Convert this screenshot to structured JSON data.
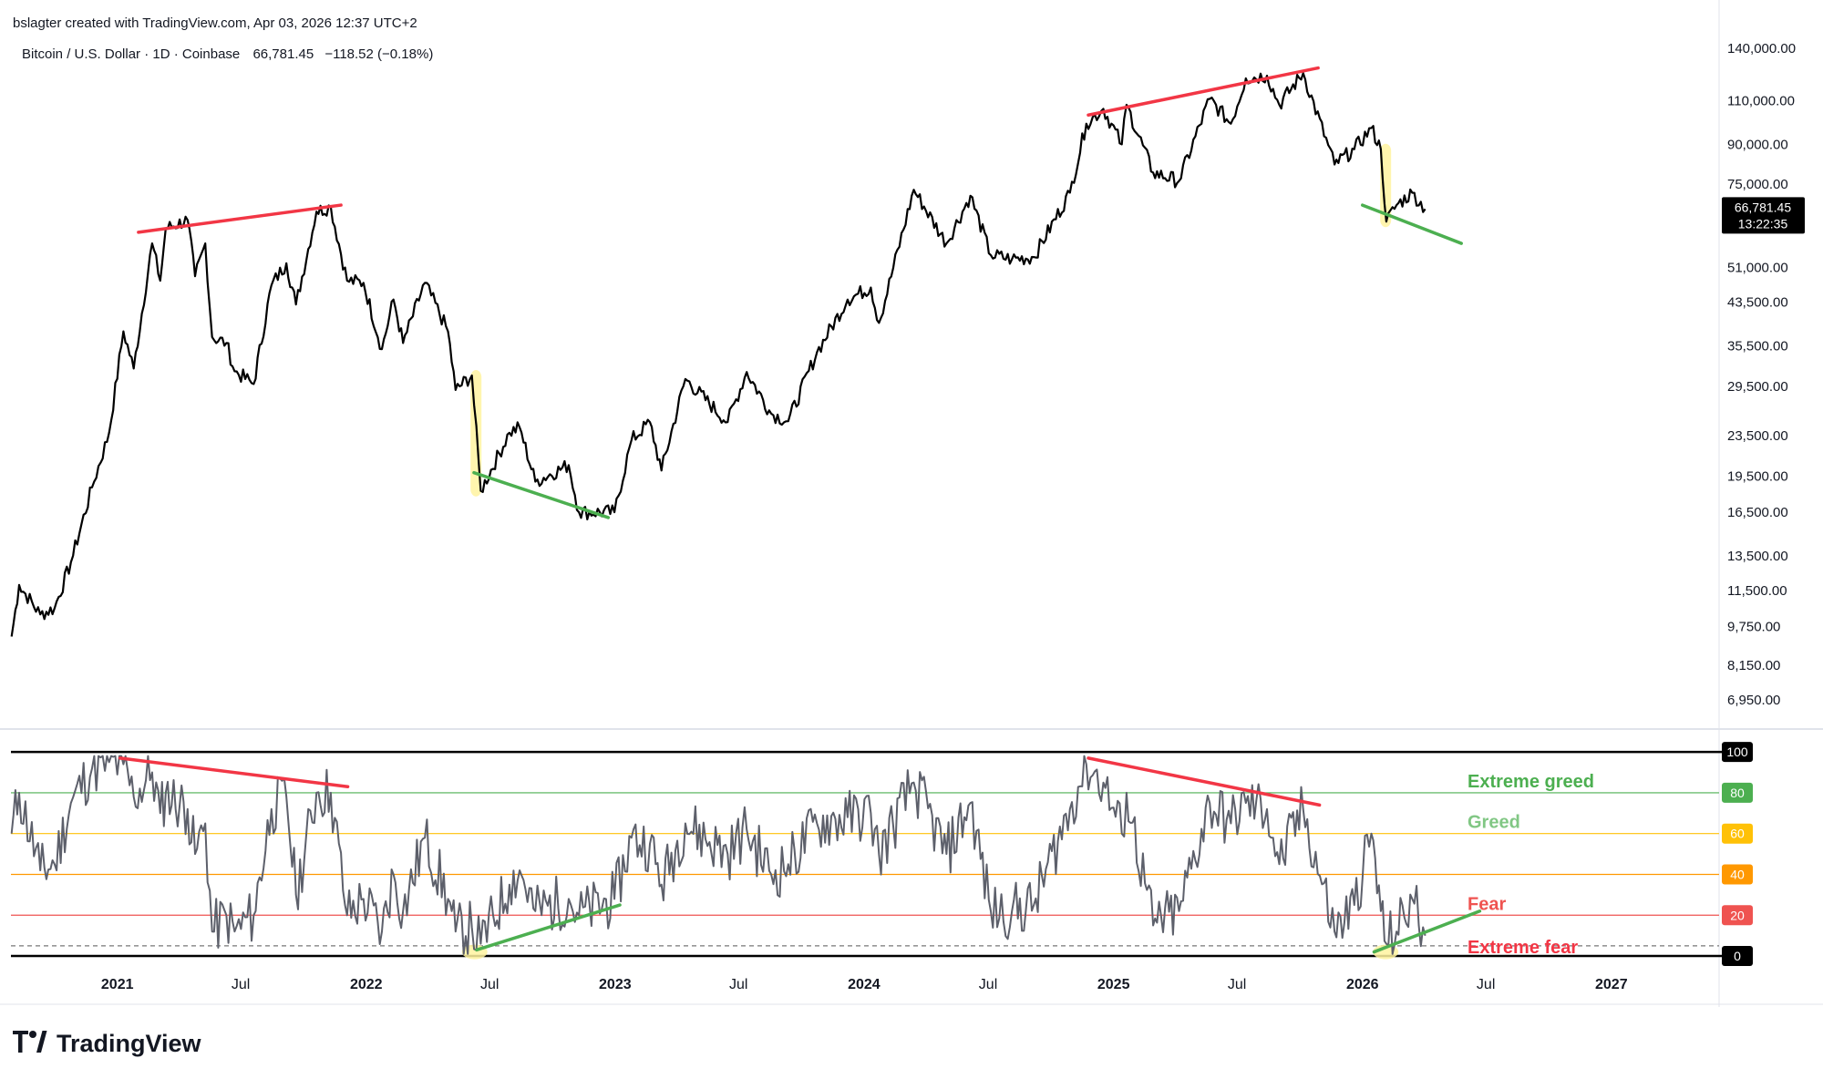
{
  "header": {
    "attribution": "bslagter created with TradingView.com, Apr 03, 2026 12:37 UTC+2",
    "symbol": "Bitcoin / U.S. Dollar · 1D · Coinbase",
    "last": "66,781.45",
    "change": "−118.52 (−0.18%)"
  },
  "price_badge": {
    "value": "66,781.45",
    "countdown": "13:22:35"
  },
  "logo": {
    "text": "TradingView"
  },
  "colors": {
    "price": "#000000",
    "indicator": "#5d606b",
    "trend_red": "#f23645",
    "trend_green": "#4caf50",
    "highlight": "#fff3a0",
    "extreme_greed": "#4caf50",
    "greed": "#81c784",
    "neutral": "#ffc107",
    "caution": "#ff9800",
    "fear": "#ef5350",
    "extreme_fear": "#f23645",
    "badge_dark": "#000000"
  },
  "chart_data": [
    {
      "type": "line",
      "title": "Bitcoin / U.S. Dollar · 1D · Coinbase",
      "scale": "log",
      "ylim": [
        6200,
        148000
      ],
      "y_ticks": [
        "140,000.00",
        "110,000.00",
        "90,000.00",
        "75,000.00",
        "51,000.00",
        "43,500.00",
        "35,500.00",
        "29,500.00",
        "23,500.00",
        "19,500.00",
        "16,500.00",
        "13,500.00",
        "11,500.00",
        "9,750.00",
        "8,150.00",
        "6,950.00"
      ],
      "y_tick_values": [
        140000,
        110000,
        90000,
        75000,
        51000,
        43500,
        35500,
        29500,
        23500,
        19500,
        16500,
        13500,
        11500,
        9750,
        8150,
        6950
      ],
      "x_ticks": [
        "2021",
        "Jul",
        "2022",
        "Jul",
        "2023",
        "Jul",
        "2024",
        "Jul",
        "2025",
        "Jul",
        "2026",
        "Jul",
        "2027"
      ],
      "x_tick_dates": [
        "2021-01-01",
        "2021-07-01",
        "2022-01-01",
        "2022-07-01",
        "2023-01-01",
        "2023-07-01",
        "2024-01-01",
        "2024-07-01",
        "2025-01-01",
        "2025-07-01",
        "2026-01-01",
        "2026-07-01",
        "2027-01-01"
      ],
      "xlim": [
        "2020-07-29",
        "2027-06-08"
      ],
      "series": [
        {
          "values": [
            [
              "2020-07-30",
              9300
            ],
            [
              "2020-08-10",
              11800
            ],
            [
              "2020-09-10",
              10300
            ],
            [
              "2020-10-01",
              10600
            ],
            [
              "2020-10-25",
              13100
            ],
            [
              "2020-11-25",
              18500
            ],
            [
              "2020-12-20",
              23800
            ],
            [
              "2021-01-10",
              38000
            ],
            [
              "2021-01-25",
              32000
            ],
            [
              "2021-02-21",
              57000
            ],
            [
              "2021-03-05",
              48000
            ],
            [
              "2021-03-13",
              61000
            ],
            [
              "2021-04-14",
              63500
            ],
            [
              "2021-04-25",
              49000
            ],
            [
              "2021-05-10",
              57000
            ],
            [
              "2021-05-20",
              37000
            ],
            [
              "2021-06-10",
              36000
            ],
            [
              "2021-06-22",
              31600
            ],
            [
              "2021-07-20",
              29800
            ],
            [
              "2021-08-15",
              47000
            ],
            [
              "2021-09-06",
              52000
            ],
            [
              "2021-09-20",
              43000
            ],
            [
              "2021-10-20",
              66000
            ],
            [
              "2021-11-10",
              67500
            ],
            [
              "2021-12-04",
              48000
            ],
            [
              "2021-12-28",
              47500
            ],
            [
              "2022-01-24",
              35000
            ],
            [
              "2022-02-10",
              44000
            ],
            [
              "2022-02-24",
              36000
            ],
            [
              "2022-03-28",
              47500
            ],
            [
              "2022-05-01",
              38000
            ],
            [
              "2022-05-12",
              29000
            ],
            [
              "2022-06-05",
              31000
            ],
            [
              "2022-06-18",
              18200
            ],
            [
              "2022-07-30",
              23800
            ],
            [
              "2022-08-14",
              24400
            ],
            [
              "2022-09-06",
              19000
            ],
            [
              "2022-10-25",
              20500
            ],
            [
              "2022-11-09",
              16500
            ],
            [
              "2022-12-31",
              16500
            ],
            [
              "2023-01-25",
              23000
            ],
            [
              "2023-02-21",
              25000
            ],
            [
              "2023-03-10",
              20000
            ],
            [
              "2023-04-14",
              30500
            ],
            [
              "2023-06-15",
              25000
            ],
            [
              "2023-07-13",
              31500
            ],
            [
              "2023-08-18",
              26000
            ],
            [
              "2023-09-12",
              25100
            ],
            [
              "2023-10-24",
              34500
            ],
            [
              "2023-12-08",
              44000
            ],
            [
              "2024-01-11",
              46500
            ],
            [
              "2024-01-23",
              39500
            ],
            [
              "2024-03-14",
              73000
            ],
            [
              "2024-05-01",
              57000
            ],
            [
              "2024-06-05",
              71000
            ],
            [
              "2024-07-05",
              54000
            ],
            [
              "2024-08-05",
              53000
            ],
            [
              "2024-09-06",
              53500
            ],
            [
              "2024-10-29",
              72000
            ],
            [
              "2024-11-22",
              99000
            ],
            [
              "2024-12-17",
              106000
            ],
            [
              "2025-01-13",
              90000
            ],
            [
              "2025-01-20",
              108000
            ],
            [
              "2025-02-28",
              79000
            ],
            [
              "2025-04-07",
              76000
            ],
            [
              "2025-05-22",
              111000
            ],
            [
              "2025-06-22",
              99000
            ],
            [
              "2025-07-14",
              122000
            ],
            [
              "2025-08-14",
              123500
            ],
            [
              "2025-09-01",
              108000
            ],
            [
              "2025-10-06",
              125000
            ],
            [
              "2025-11-21",
              82000
            ],
            [
              "2025-12-20",
              88000
            ],
            [
              "2026-01-14",
              97000
            ],
            [
              "2026-01-28",
              88000
            ],
            [
              "2026-02-05",
              63000
            ],
            [
              "2026-02-20",
              68000
            ],
            [
              "2026-03-15",
              72000
            ],
            [
              "2026-04-03",
              66781
            ]
          ]
        }
      ]
    },
    {
      "type": "line",
      "ylim": [
        -4,
        109
      ],
      "y_ticks": [
        "100",
        "80",
        "60",
        "40",
        "20",
        "0"
      ],
      "y_tick_values": [
        100,
        80,
        60,
        40,
        20,
        0
      ],
      "x_ticks": [
        "2021",
        "Jul",
        "2022",
        "Jul",
        "2023",
        "Jul",
        "2024",
        "Jul",
        "2025",
        "Jul",
        "2026",
        "Jul",
        "2027"
      ],
      "zones": [
        {
          "value": 80,
          "label": "Extreme greed",
          "color": "#4caf50"
        },
        {
          "value": 60,
          "label": "Greed",
          "color": "#ffc107",
          "text_color": "#81c784"
        },
        {
          "value": 40,
          "label": "",
          "color": "#ff9800"
        },
        {
          "value": 20,
          "label": "Fear",
          "color": "#ef5350"
        },
        {
          "value": 5,
          "label": "Extreme fear",
          "color": "#f23645",
          "dashed": true
        }
      ],
      "series": [
        {
          "values": [
            [
              "2020-07-30",
              60
            ],
            [
              "2020-08-10",
              80
            ],
            [
              "2020-09-10",
              42
            ],
            [
              "2020-10-01",
              45
            ],
            [
              "2020-10-25",
              75
            ],
            [
              "2020-11-25",
              92
            ],
            [
              "2020-12-20",
              95
            ],
            [
              "2021-01-10",
              94
            ],
            [
              "2021-01-25",
              78
            ],
            [
              "2021-02-21",
              90
            ],
            [
              "2021-03-05",
              70
            ],
            [
              "2021-03-13",
              80
            ],
            [
              "2021-04-14",
              72
            ],
            [
              "2021-04-25",
              50
            ],
            [
              "2021-05-10",
              65
            ],
            [
              "2021-05-20",
              12
            ],
            [
              "2021-06-10",
              20
            ],
            [
              "2021-06-22",
              12
            ],
            [
              "2021-07-20",
              20
            ],
            [
              "2021-08-15",
              72
            ],
            [
              "2021-09-06",
              78
            ],
            [
              "2021-09-20",
              30
            ],
            [
              "2021-10-20",
              80
            ],
            [
              "2021-11-10",
              80
            ],
            [
              "2021-12-04",
              20
            ],
            [
              "2021-12-28",
              28
            ],
            [
              "2022-01-24",
              12
            ],
            [
              "2022-02-10",
              40
            ],
            [
              "2022-02-24",
              22
            ],
            [
              "2022-03-28",
              58
            ],
            [
              "2022-05-01",
              28
            ],
            [
              "2022-05-12",
              12
            ],
            [
              "2022-06-05",
              14
            ],
            [
              "2022-06-18",
              6
            ],
            [
              "2022-07-30",
              35
            ],
            [
              "2022-08-14",
              42
            ],
            [
              "2022-09-06",
              22
            ],
            [
              "2022-10-25",
              28
            ],
            [
              "2022-11-09",
              20
            ],
            [
              "2022-12-31",
              28
            ],
            [
              "2023-01-25",
              58
            ],
            [
              "2023-02-21",
              55
            ],
            [
              "2023-03-10",
              35
            ],
            [
              "2023-04-14",
              65
            ],
            [
              "2023-06-15",
              50
            ],
            [
              "2023-07-13",
              62
            ],
            [
              "2023-08-18",
              40
            ],
            [
              "2023-09-12",
              45
            ],
            [
              "2023-10-24",
              65
            ],
            [
              "2023-12-08",
              68
            ],
            [
              "2024-01-11",
              70
            ],
            [
              "2024-01-23",
              50
            ],
            [
              "2024-03-14",
              85
            ],
            [
              "2024-05-01",
              50
            ],
            [
              "2024-06-05",
              75
            ],
            [
              "2024-07-05",
              22
            ],
            [
              "2024-08-05",
              22
            ],
            [
              "2024-09-06",
              25
            ],
            [
              "2024-10-29",
              72
            ],
            [
              "2024-11-22",
              94
            ],
            [
              "2024-12-17",
              85
            ],
            [
              "2025-01-13",
              60
            ],
            [
              "2025-01-20",
              80
            ],
            [
              "2025-02-28",
              15
            ],
            [
              "2025-04-07",
              22
            ],
            [
              "2025-05-22",
              75
            ],
            [
              "2025-06-22",
              65
            ],
            [
              "2025-07-14",
              75
            ],
            [
              "2025-08-14",
              72
            ],
            [
              "2025-09-01",
              45
            ],
            [
              "2025-10-06",
              72
            ],
            [
              "2025-11-21",
              12
            ],
            [
              "2025-12-20",
              25
            ],
            [
              "2026-01-14",
              60
            ],
            [
              "2026-01-28",
              22
            ],
            [
              "2026-02-05",
              6
            ],
            [
              "2026-02-20",
              12
            ],
            [
              "2026-03-15",
              28
            ],
            [
              "2026-04-03",
              10
            ]
          ]
        }
      ]
    }
  ],
  "trendlines": {
    "price": [
      {
        "color": "red",
        "from": [
          "2021-02-01",
          60000
        ],
        "to": [
          "2021-11-25",
          68000
        ]
      },
      {
        "color": "green",
        "from": [
          "2022-06-08",
          19800
        ],
        "to": [
          "2022-12-22",
          16100
        ]
      },
      {
        "color": "red",
        "from": [
          "2024-11-25",
          103000
        ],
        "to": [
          "2025-10-28",
          128000
        ]
      },
      {
        "color": "green",
        "from": [
          "2026-01-01",
          68000
        ],
        "to": [
          "2026-05-26",
          57000
        ]
      }
    ],
    "indicator": [
      {
        "color": "red",
        "from": [
          "2021-01-05",
          97
        ],
        "to": [
          "2021-12-05",
          83
        ]
      },
      {
        "color": "green",
        "from": [
          "2022-06-12",
          3
        ],
        "to": [
          "2023-01-08",
          25
        ]
      },
      {
        "color": "red",
        "from": [
          "2024-11-25",
          97
        ],
        "to": [
          "2025-10-30",
          74
        ]
      },
      {
        "color": "green",
        "from": [
          "2026-01-18",
          2
        ],
        "to": [
          "2026-06-22",
          22
        ]
      }
    ]
  },
  "highlights": [
    {
      "from": "2022-06-03",
      "to": "2022-06-15"
    },
    {
      "from": "2026-01-27",
      "to": "2026-02-12"
    }
  ]
}
